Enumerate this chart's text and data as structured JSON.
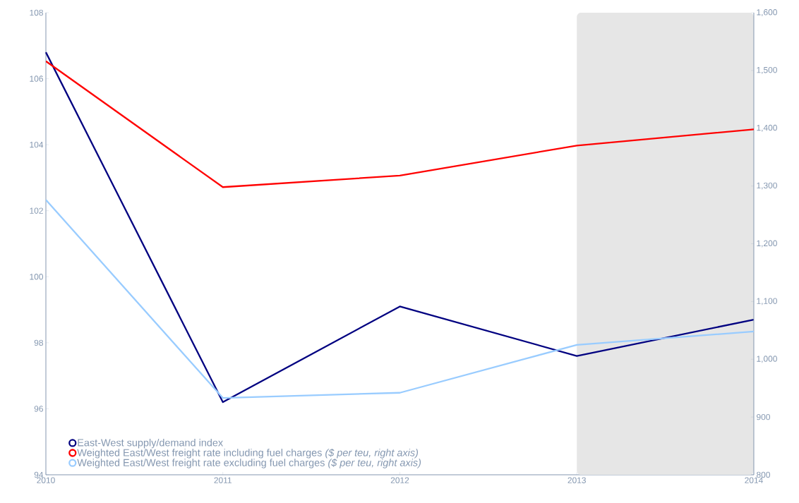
{
  "chart_data": {
    "type": "line",
    "x": [
      2010,
      2011,
      2012,
      2013,
      2014
    ],
    "series": [
      {
        "name": "East-West supply/demand index",
        "color": "#000080",
        "values": [
          106.8,
          96.2,
          99.1,
          97.6,
          98.7
        ]
      },
      {
        "name": "Weighted East/West freight rate including fuel charges *($ per teu, right axis)*",
        "color": "#ff0000",
        "axis": "y2",
        "values": [
          1516,
          1298,
          1318,
          1370,
          1398
        ]
      },
      {
        "name": "Weighted East/West freight rate excluding fuel charges *($ per teu, right axis)*",
        "color": "#99ccff",
        "axis": "y2",
        "values": [
          1276,
          933,
          942,
          1025,
          1048
        ]
      }
    ],
    "xlim": [
      2010,
      2014
    ],
    "xticks": [
      {
        "value": 2010,
        "label": "2010"
      },
      {
        "value": 2011,
        "label": "2011"
      },
      {
        "value": 2012,
        "label": "2012"
      },
      {
        "value": 2013,
        "label": "2013"
      },
      {
        "value": 2014,
        "label": "2014"
      }
    ],
    "ylim": [
      94,
      108
    ],
    "yticks": [
      94,
      96,
      98,
      100,
      102,
      104,
      106,
      108
    ],
    "y2lim": [
      800,
      1600
    ],
    "y2ticks": [
      {
        "value": 800,
        "label": "800"
      },
      {
        "value": 900,
        "label": "900"
      },
      {
        "value": 1000,
        "label": "1,000"
      },
      {
        "value": 1100,
        "label": "1,100"
      },
      {
        "value": 1200,
        "label": "1,200"
      },
      {
        "value": 1300,
        "label": "1,300"
      },
      {
        "value": 1400,
        "label": "1,400"
      },
      {
        "value": 1500,
        "label": "1,500"
      },
      {
        "value": 1600,
        "label": "1,600"
      }
    ],
    "bands": [
      {
        "axis": "x",
        "from": 2013,
        "to": 2014,
        "color": "#e6e6e6"
      }
    ],
    "legend": "bottom left",
    "grid": false
  }
}
